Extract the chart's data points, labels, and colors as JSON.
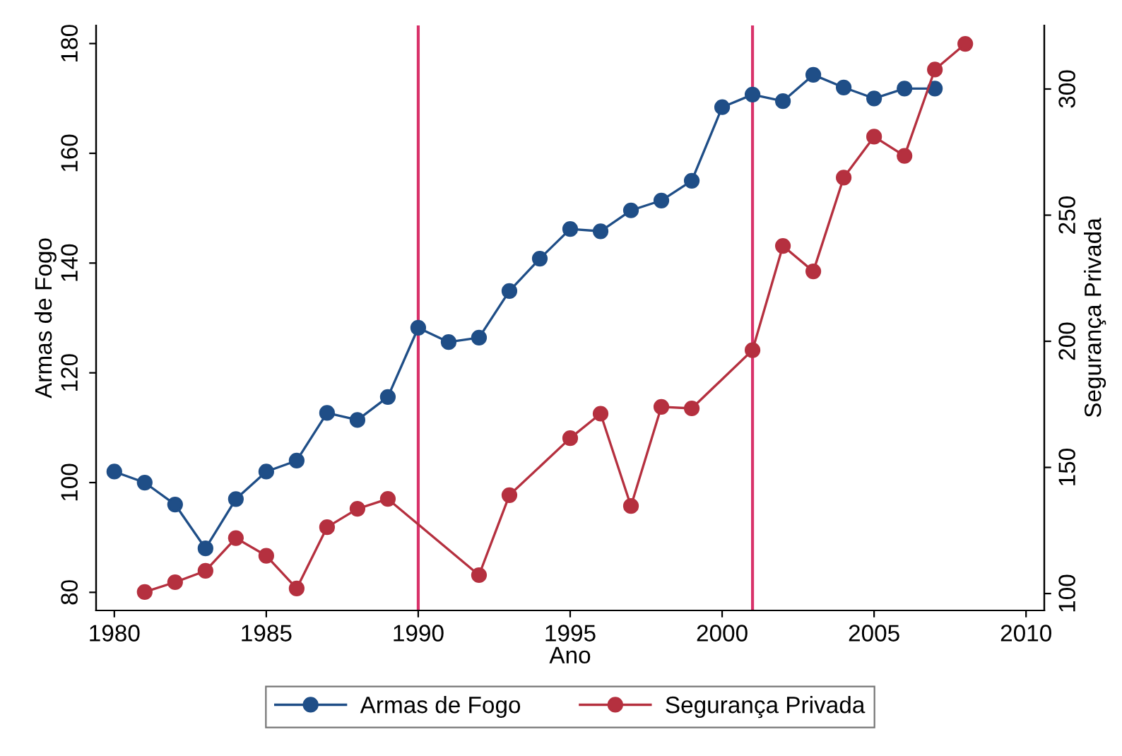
{
  "chart_data": {
    "type": "line",
    "xlabel": "Ano",
    "ylabel": "Armas de Fogo",
    "y2label": "Segurança Privada",
    "series": [
      {
        "name": "Armas de Fogo",
        "color": "#1f4e87",
        "x": [
          1980,
          1981,
          1982,
          1983,
          1984,
          1985,
          1986,
          1987,
          1988,
          1989,
          1990,
          1991,
          1992,
          1993,
          1994,
          1995,
          1996,
          1997,
          1998,
          1999,
          2000,
          2001,
          2002,
          2003,
          2004,
          2005,
          2006,
          2007
        ],
        "values": [
          102,
          100,
          96,
          88,
          97,
          102,
          104,
          112.7,
          111.4,
          115.6,
          128.2,
          125.6,
          126.4,
          134.9,
          140.8,
          146.2,
          145.8,
          149.6,
          151.4,
          155,
          168.4,
          170.7,
          169.5,
          174.3,
          172,
          170,
          171.8,
          171.8
        ]
      },
      {
        "name": "Segurança Privada",
        "color": "#b5303f",
        "axis": "y2",
        "x": [
          1981,
          1982,
          1983,
          1984,
          1985,
          1986,
          1987,
          1988,
          1989,
          1992,
          1993,
          1995,
          1996,
          1997,
          1998,
          1999,
          2001,
          2002,
          2003,
          2004,
          2005,
          2006,
          2007,
          2008
        ],
        "values": [
          100.6,
          104.5,
          109,
          122,
          115,
          102,
          126.3,
          133.6,
          137.5,
          107.3,
          139,
          161.6,
          171.3,
          134.7,
          174,
          173.4,
          196.5,
          237.8,
          227.7,
          264.9,
          281.1,
          273.5,
          307.7,
          317.9
        ]
      }
    ],
    "xlim": [
      1979.4,
      2010.6
    ],
    "xticks": [
      1980,
      1985,
      1990,
      1995,
      2000,
      2005,
      2010
    ],
    "ylim": [
      76.7,
      183.3
    ],
    "yticks": [
      80,
      100,
      120,
      140,
      160,
      180
    ],
    "y2lim": [
      93.3,
      325.2
    ],
    "y2ticks": [
      100,
      150,
      200,
      250,
      300
    ],
    "ref_lines": [
      {
        "axis": "x",
        "value": 1990,
        "color": "#d9326a"
      },
      {
        "axis": "x",
        "value": 2001,
        "color": "#d9326a"
      }
    ],
    "marker": "circle",
    "line_style": "solid",
    "grid": false,
    "legend": "bottom"
  }
}
